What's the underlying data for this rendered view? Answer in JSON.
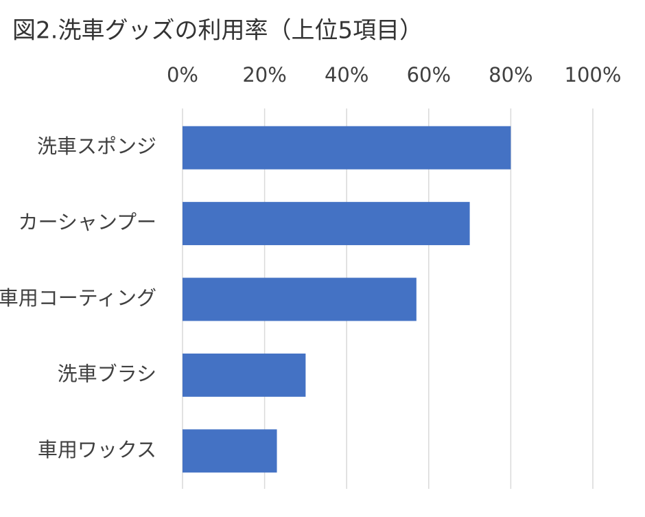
{
  "chart_data": {
    "type": "bar",
    "orientation": "horizontal",
    "title": "図2.洗車グッズの利用率（上位5項目）",
    "categories": [
      "洗車スポンジ",
      "カーシャンプー",
      "車用コーティング",
      "洗車ブラシ",
      "車用ワックス"
    ],
    "values": [
      80,
      70,
      57,
      30,
      23
    ],
    "color": "#4472c4",
    "xlim": [
      0,
      100
    ],
    "xticks": [
      {
        "value": 0,
        "label": "0%"
      },
      {
        "value": 20,
        "label": "20%"
      },
      {
        "value": 40,
        "label": "40%"
      },
      {
        "value": 60,
        "label": "60%"
      },
      {
        "value": 80,
        "label": "80%"
      },
      {
        "value": 100,
        "label": "100%"
      }
    ],
    "grid": true
  }
}
